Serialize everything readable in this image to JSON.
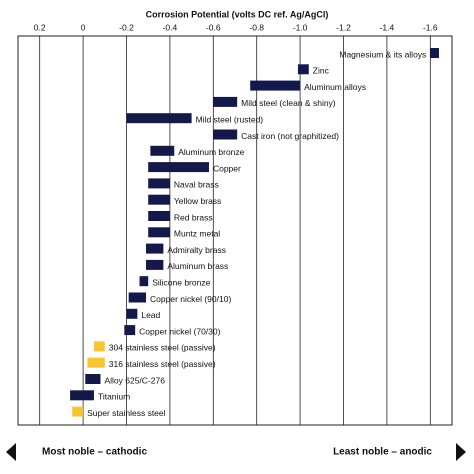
{
  "chart_data": {
    "type": "bar",
    "orientation": "horizontal",
    "title": "Corrosion Potential (volts DC ref. Ag/AgCl)",
    "categories": [
      "Magnesium & its alloys",
      "Zinc",
      "Aluminum alloys",
      "Mild steel (clean & shiny)",
      "Mild steel (rusted)",
      "Cast iron (not graphitized)",
      "Aluminum bronze",
      "Copper",
      "Naval brass",
      "Yellow brass",
      "Red brass",
      "Muntz metal",
      "Admiralty brass",
      "Aluminum brass",
      "Silicone bronze",
      "Copper nickel (90/10)",
      "Lead",
      "Copper nickel (70/30)",
      "304 stainless steel (passive)",
      "316 stainless steel (passive)",
      "Alloy 625/C-276",
      "Titanium",
      "Super stainless steel"
    ],
    "start": [
      -1.6,
      -0.99,
      -0.77,
      -0.6,
      -0.2,
      -0.6,
      -0.31,
      -0.3,
      -0.3,
      -0.3,
      -0.3,
      -0.3,
      -0.29,
      -0.29,
      -0.26,
      -0.21,
      -0.2,
      -0.19,
      -0.05,
      -0.02,
      -0.01,
      0.06,
      0.05
    ],
    "end": [
      -1.64,
      -1.04,
      -1.0,
      -0.71,
      -0.5,
      -0.71,
      -0.42,
      -0.58,
      -0.4,
      -0.4,
      -0.4,
      -0.4,
      -0.37,
      -0.37,
      -0.3,
      -0.29,
      -0.25,
      -0.24,
      -0.1,
      -0.1,
      -0.08,
      -0.05,
      0
    ],
    "colors": [
      "#15194a",
      "#15194a",
      "#15194a",
      "#15194a",
      "#15194a",
      "#15194a",
      "#15194a",
      "#15194a",
      "#15194a",
      "#15194a",
      "#15194a",
      "#15194a",
      "#15194a",
      "#15194a",
      "#15194a",
      "#15194a",
      "#15194a",
      "#15194a",
      "#f6c532",
      "#f6c532",
      "#15194a",
      "#15194a",
      "#f6c532"
    ],
    "xlim": [
      0.3,
      -1.7
    ],
    "xticks": [
      0.2,
      0,
      -0.2,
      -0.4,
      -0.6,
      -0.8,
      {
        "value": -1,
        "label": "-1.0"
      },
      -1.2,
      -1.4,
      -1.6
    ],
    "grid": true,
    "annotations": [
      "Most noble – cathodic",
      "Least noble – anodic"
    ]
  }
}
